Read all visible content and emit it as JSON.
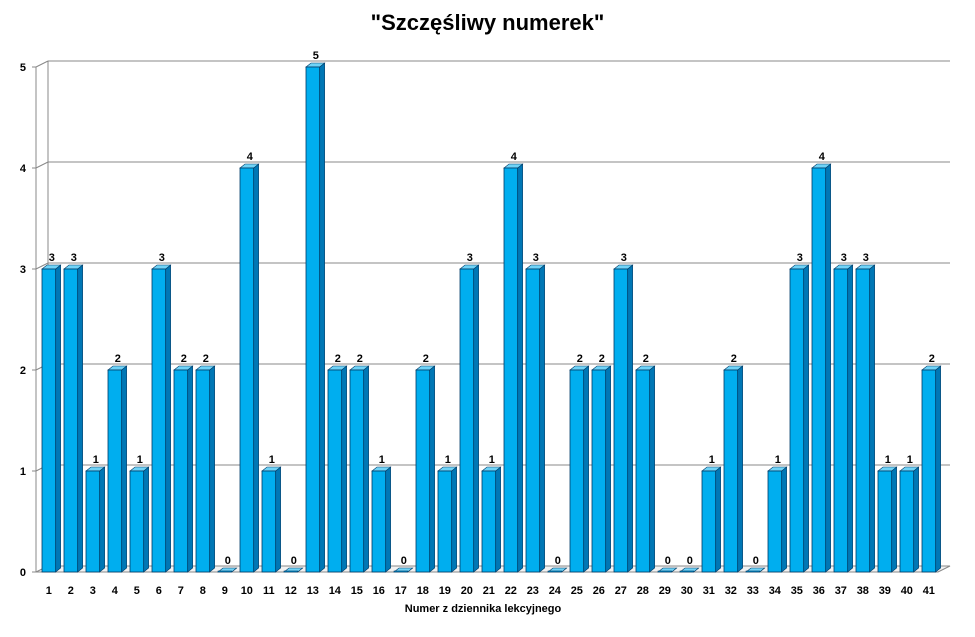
{
  "chart_data": {
    "type": "bar",
    "title": "\"Szczęśliwy numerek\"",
    "xlabel": "Numer z dziennika  lekcyjnego",
    "ylabel": "",
    "ylim": [
      0,
      5
    ],
    "yticks": [
      0,
      1,
      2,
      3,
      4,
      5
    ],
    "grid": true,
    "bar_color": "#00AEEF",
    "bar_top_color": "#6FD3F7",
    "bar_side_color": "#0077B5",
    "categories": [
      "1",
      "2",
      "3",
      "4",
      "5",
      "6",
      "7",
      "8",
      "9",
      "10",
      "11",
      "12",
      "13",
      "14",
      "15",
      "16",
      "17",
      "18",
      "19",
      "20",
      "21",
      "22",
      "23",
      "24",
      "25",
      "26",
      "27",
      "28",
      "29",
      "30",
      "31",
      "32",
      "33",
      "34",
      "35",
      "36",
      "37",
      "38",
      "39",
      "40",
      "41"
    ],
    "values": [
      3,
      3,
      1,
      2,
      1,
      3,
      2,
      2,
      0,
      4,
      1,
      0,
      5,
      2,
      2,
      1,
      0,
      2,
      1,
      3,
      1,
      4,
      3,
      0,
      2,
      2,
      3,
      2,
      0,
      0,
      1,
      2,
      0,
      1,
      3,
      4,
      3,
      3,
      1,
      1,
      2
    ]
  }
}
